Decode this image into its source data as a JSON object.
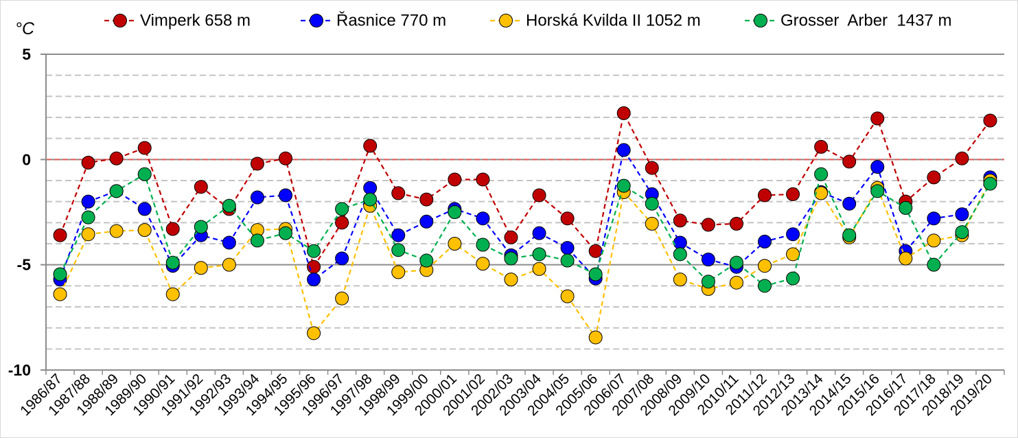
{
  "chart_data": {
    "type": "line",
    "ylabel": "°C",
    "ylim": [
      -10,
      5
    ],
    "yticks": [
      5,
      0,
      -5,
      -10
    ],
    "minor_gridline_step": 1,
    "grid": true,
    "legend": "top",
    "categories": [
      "1986/87",
      "1987/88",
      "1988/89",
      "1989/90",
      "1990/91",
      "1991/92",
      "1992/93",
      "1993/94",
      "1994/95",
      "1995/96",
      "1996/97",
      "1997/98",
      "1998/99",
      "1999/00",
      "2000/01",
      "2001/02",
      "2002/03",
      "2003/04",
      "2004/05",
      "2005/06",
      "2006/07",
      "2007/08",
      "2008/09",
      "2009/10",
      "2010/11",
      "2011/12",
      "2012/13",
      "2013/14",
      "2014/15",
      "2015/16",
      "2016/17",
      "2017/18",
      "2018/19",
      "2019/20"
    ],
    "series": [
      {
        "name": "Vimperk 658 m",
        "color": "#c00000",
        "values": [
          -3.6,
          -0.15,
          0.05,
          0.55,
          -3.3,
          -1.3,
          -2.35,
          -0.2,
          0.05,
          -5.1,
          -3.0,
          0.65,
          -1.6,
          -1.9,
          -0.95,
          -0.95,
          -3.7,
          -1.7,
          -2.8,
          -4.35,
          2.2,
          -0.4,
          -2.9,
          -3.1,
          -3.05,
          -1.7,
          -1.65,
          0.6,
          -0.1,
          1.95,
          -2.0,
          -0.85,
          0.05,
          1.85
        ]
      },
      {
        "name": "Řasnice 770 m",
        "color": "#0000ff",
        "values": [
          -5.7,
          -2.0,
          -1.5,
          -2.35,
          -5.05,
          -3.6,
          -3.95,
          -1.8,
          -1.7,
          -5.7,
          -4.7,
          -1.35,
          -3.6,
          -2.95,
          -2.35,
          -2.8,
          -4.55,
          -3.5,
          -4.2,
          -5.65,
          0.45,
          -1.65,
          -3.95,
          -4.75,
          -5.1,
          -3.9,
          -3.55,
          -1.55,
          -2.1,
          -0.35,
          -4.35,
          -2.8,
          -2.6,
          -0.85
        ]
      },
      {
        "name": "Horská Kvilda II 1052 m",
        "color": "#ffc000",
        "values": [
          -6.4,
          -3.55,
          -3.4,
          -3.35,
          -6.4,
          -5.15,
          -5.0,
          -3.35,
          -3.3,
          -8.25,
          -6.6,
          -2.2,
          -5.35,
          -5.25,
          -4.0,
          -4.95,
          -5.7,
          -5.2,
          -6.5,
          -8.45,
          -1.55,
          -3.05,
          -5.7,
          -6.15,
          -5.85,
          -5.05,
          -4.5,
          -1.6,
          -3.7,
          -1.35,
          -4.7,
          -3.85,
          -3.6,
          -1.0
        ]
      },
      {
        "name": "Grosser  Arber  1437 m",
        "color": "#00b050",
        "values": [
          -5.45,
          -2.75,
          -1.5,
          -0.7,
          -4.9,
          -3.2,
          -2.2,
          -3.85,
          -3.5,
          -4.35,
          -2.35,
          -1.9,
          -4.3,
          -4.8,
          -2.5,
          -4.05,
          -4.7,
          -4.5,
          -4.8,
          -5.45,
          -1.25,
          -2.1,
          -4.5,
          -5.8,
          -4.9,
          -6.0,
          -5.65,
          -0.7,
          -3.6,
          -1.5,
          -2.3,
          -5.0,
          -3.45,
          -1.15
        ]
      }
    ]
  }
}
